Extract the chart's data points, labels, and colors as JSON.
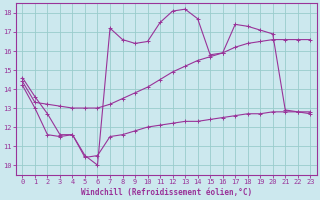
{
  "xlabel": "Windchill (Refroidissement éolien,°C)",
  "bg_color": "#cce8ee",
  "grid_color": "#99cccc",
  "line_color": "#993399",
  "axis_color": "#993399",
  "xlim": [
    -0.5,
    23.5
  ],
  "ylim": [
    9.5,
    18.5
  ],
  "xticks": [
    0,
    1,
    2,
    3,
    4,
    5,
    6,
    7,
    8,
    9,
    10,
    11,
    12,
    13,
    14,
    15,
    16,
    17,
    18,
    19,
    20,
    21,
    22,
    23
  ],
  "yticks": [
    10,
    11,
    12,
    13,
    14,
    15,
    16,
    17,
    18
  ],
  "line1_x": [
    0,
    1,
    2,
    3,
    4,
    5,
    6,
    7,
    8,
    9,
    10,
    11,
    12,
    13,
    14,
    15,
    16,
    17,
    18,
    19,
    20,
    21,
    22,
    23
  ],
  "line1_y": [
    14.6,
    13.6,
    12.7,
    11.6,
    11.6,
    10.5,
    10.0,
    17.2,
    16.6,
    16.4,
    16.5,
    17.5,
    18.1,
    18.2,
    17.7,
    15.8,
    15.9,
    17.4,
    17.3,
    17.1,
    16.9,
    12.9,
    12.8,
    12.7
  ],
  "line2_x": [
    0,
    1,
    2,
    3,
    4,
    5,
    6,
    7,
    8,
    9,
    10,
    11,
    12,
    13,
    14,
    15,
    16,
    17,
    18,
    19,
    20,
    21,
    22,
    23
  ],
  "line2_y": [
    14.4,
    13.3,
    13.2,
    13.1,
    13.0,
    13.0,
    13.0,
    13.2,
    13.5,
    13.8,
    14.1,
    14.5,
    14.9,
    15.2,
    15.5,
    15.7,
    15.9,
    16.2,
    16.4,
    16.5,
    16.6,
    16.6,
    16.6,
    16.6
  ],
  "line3_x": [
    0,
    1,
    2,
    3,
    4,
    5,
    6,
    7,
    8,
    9,
    10,
    11,
    12,
    13,
    14,
    15,
    16,
    17,
    18,
    19,
    20,
    21,
    22,
    23
  ],
  "line3_y": [
    14.2,
    13.0,
    11.6,
    11.5,
    11.6,
    10.4,
    10.5,
    11.5,
    11.6,
    11.8,
    12.0,
    12.1,
    12.2,
    12.3,
    12.3,
    12.4,
    12.5,
    12.6,
    12.7,
    12.7,
    12.8,
    12.8,
    12.8,
    12.8
  ],
  "xlabel_fontsize": 5.5,
  "tick_fontsize": 5.0
}
